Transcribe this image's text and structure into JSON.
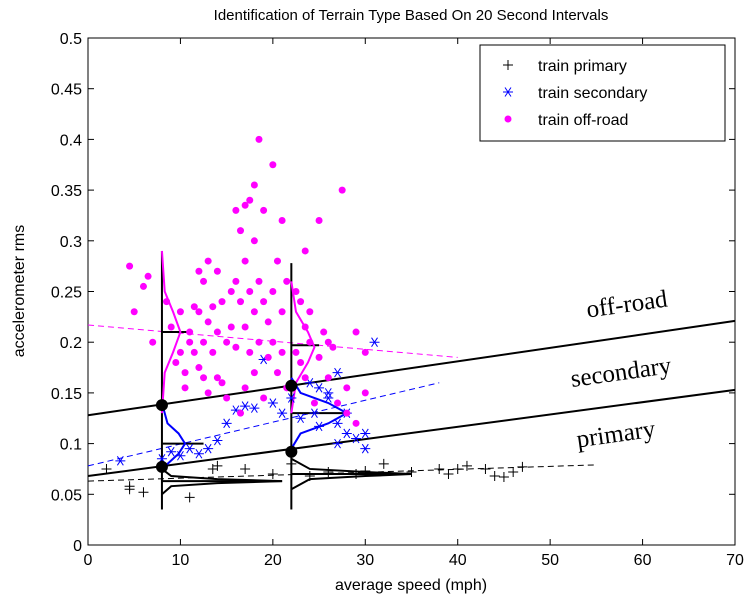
{
  "chart_data": {
    "type": "scatter",
    "title": "Identification of Terrain Type Based On 20 Second Intervals",
    "x_label": "average speed (mph)",
    "y_label": "accelerometer rms",
    "xlim": [
      0,
      70
    ],
    "ylim": [
      0,
      0.5
    ],
    "xticks": [
      0,
      10,
      20,
      30,
      40,
      50,
      60,
      70
    ],
    "yticks": [
      0,
      0.05,
      0.1,
      0.15,
      0.2,
      0.25,
      0.3,
      0.35,
      0.4,
      0.45,
      0.5
    ],
    "legend": "upper right",
    "series": [
      {
        "name": "train primary",
        "color": "#000000",
        "marker": "plus",
        "x": [
          2,
          4.5,
          4.5,
          6,
          8,
          11,
          13.5,
          14,
          17,
          20,
          22,
          24,
          26,
          29,
          30,
          32,
          35,
          38,
          39,
          40,
          41,
          43,
          44,
          45,
          46,
          47
        ],
        "y": [
          0.075,
          0.058,
          0.055,
          0.052,
          0.075,
          0.047,
          0.075,
          0.078,
          0.075,
          0.07,
          0.08,
          0.068,
          0.072,
          0.07,
          0.073,
          0.08,
          0.072,
          0.075,
          0.07,
          0.075,
          0.078,
          0.075,
          0.068,
          0.067,
          0.072,
          0.077
        ]
      },
      {
        "name": "train secondary",
        "color": "#0000ff",
        "marker": "star",
        "x": [
          3.5,
          8,
          9,
          10,
          11,
          12,
          13,
          14,
          15,
          16,
          17,
          18,
          19,
          20,
          21,
          22,
          23,
          24,
          25,
          26,
          27,
          27,
          28,
          28,
          29,
          30,
          30,
          31,
          26,
          24.5,
          25,
          27
        ],
        "y": [
          0.083,
          0.085,
          0.092,
          0.088,
          0.095,
          0.09,
          0.095,
          0.103,
          0.12,
          0.133,
          0.137,
          0.135,
          0.183,
          0.14,
          0.13,
          0.145,
          0.125,
          0.16,
          0.155,
          0.15,
          0.1,
          0.12,
          0.13,
          0.11,
          0.105,
          0.095,
          0.11,
          0.2,
          0.145,
          0.13,
          0.117,
          0.17
        ]
      },
      {
        "name": "train off-road",
        "color": "#ff00ff",
        "marker": "dot",
        "x": [
          4.5,
          5,
          6,
          6.5,
          7,
          8.5,
          9,
          9.5,
          10,
          10,
          10.5,
          10.5,
          11,
          11,
          11.5,
          11.5,
          12,
          12,
          12.5,
          12.5,
          12.5,
          13,
          13,
          13.5,
          13.5,
          14,
          14,
          14,
          14.5,
          14.5,
          15,
          15,
          15.5,
          15.5,
          16,
          16,
          16,
          16.5,
          16.5,
          17,
          17,
          17,
          17,
          17.5,
          17.5,
          17.5,
          18,
          18,
          18,
          18,
          18.5,
          18.5,
          18.5,
          19,
          19,
          19,
          19.5,
          19.5,
          20,
          20,
          20,
          20.5,
          20.5,
          21,
          21,
          21,
          21.5,
          21.5,
          22.5,
          22.5,
          23,
          23,
          23.5,
          23.5,
          24,
          24,
          24.5,
          25,
          25,
          25.5,
          26,
          26,
          26.5,
          27,
          27.5,
          28,
          28,
          29,
          29,
          30,
          30,
          16.5,
          12,
          23.5,
          13
        ],
        "y": [
          0.275,
          0.23,
          0.255,
          0.265,
          0.2,
          0.24,
          0.215,
          0.18,
          0.19,
          0.23,
          0.17,
          0.155,
          0.21,
          0.2,
          0.235,
          0.19,
          0.23,
          0.175,
          0.26,
          0.2,
          0.165,
          0.22,
          0.15,
          0.235,
          0.19,
          0.27,
          0.21,
          0.165,
          0.24,
          0.16,
          0.2,
          0.145,
          0.25,
          0.215,
          0.33,
          0.26,
          0.195,
          0.31,
          0.24,
          0.335,
          0.28,
          0.215,
          0.155,
          0.34,
          0.25,
          0.19,
          0.355,
          0.3,
          0.23,
          0.17,
          0.4,
          0.26,
          0.2,
          0.33,
          0.24,
          0.145,
          0.22,
          0.185,
          0.375,
          0.25,
          0.2,
          0.28,
          0.17,
          0.32,
          0.23,
          0.19,
          0.26,
          0.155,
          0.25,
          0.19,
          0.24,
          0.18,
          0.215,
          0.165,
          0.23,
          0.2,
          0.14,
          0.32,
          0.185,
          0.21,
          0.2,
          0.165,
          0.195,
          0.14,
          0.35,
          0.155,
          0.13,
          0.21,
          0.12,
          0.19,
          0.15,
          0.13,
          0.27,
          0.29,
          0.28
        ]
      }
    ],
    "lines": [
      {
        "color": "#000000",
        "dashed": true,
        "x": [
          0,
          55
        ],
        "y": [
          0.063,
          0.079
        ]
      },
      {
        "color": "#0000ff",
        "dashed": true,
        "x": [
          0,
          38
        ],
        "y": [
          0.078,
          0.16
        ]
      },
      {
        "color": "#ff00ff",
        "dashed": true,
        "x": [
          0,
          40
        ],
        "y": [
          0.217,
          0.185
        ]
      },
      {
        "color": "#000000",
        "dashed": false,
        "x": [
          0,
          70
        ],
        "y": [
          0.128,
          0.221
        ]
      },
      {
        "color": "#000000",
        "dashed": false,
        "x": [
          0,
          70
        ],
        "y": [
          0.068,
          0.153
        ]
      },
      {
        "color": "#000000",
        "dashed": false,
        "x": [
          8,
          8
        ],
        "y": [
          0.035,
          0.29
        ]
      },
      {
        "color": "#000000",
        "dashed": false,
        "x": [
          22,
          22
        ],
        "y": [
          0.035,
          0.278
        ]
      },
      {
        "color": "#000000",
        "dashed": false,
        "x": [
          8,
          11
        ],
        "y": [
          0.21,
          0.21
        ]
      },
      {
        "color": "#000000",
        "dashed": false,
        "x": [
          8,
          12.5
        ],
        "y": [
          0.1,
          0.1
        ]
      },
      {
        "color": "#000000",
        "dashed": false,
        "x": [
          8,
          21
        ],
        "y": [
          0.063,
          0.063
        ]
      },
      {
        "color": "#000000",
        "dashed": false,
        "x": [
          22,
          25
        ],
        "y": [
          0.197,
          0.197
        ]
      },
      {
        "color": "#000000",
        "dashed": false,
        "x": [
          22,
          28
        ],
        "y": [
          0.13,
          0.13
        ]
      },
      {
        "color": "#000000",
        "dashed": false,
        "x": [
          22,
          35
        ],
        "y": [
          0.07,
          0.07
        ]
      },
      {
        "color": "#ff00ff",
        "dashed": false,
        "x": [
          8,
          8.3,
          9.2,
          10,
          9.2,
          8.3,
          8
        ],
        "y": [
          0.29,
          0.25,
          0.23,
          0.21,
          0.19,
          0.17,
          0.13
        ]
      },
      {
        "color": "#0000ff",
        "dashed": false,
        "x": [
          8,
          8.6,
          9.8,
          10.5,
          9.8,
          8.6,
          8
        ],
        "y": [
          0.14,
          0.12,
          0.11,
          0.1,
          0.09,
          0.08,
          0.075
        ]
      },
      {
        "color": "#000000",
        "dashed": false,
        "x": [
          8,
          9,
          14,
          21,
          14,
          9,
          8
        ],
        "y": [
          0.075,
          0.068,
          0.065,
          0.063,
          0.061,
          0.058,
          0.05
        ]
      },
      {
        "color": "#ff00ff",
        "dashed": false,
        "x": [
          22,
          22.5,
          23.8,
          24.5,
          23.8,
          22.5,
          22
        ],
        "y": [
          0.26,
          0.23,
          0.21,
          0.195,
          0.18,
          0.16,
          0.13
        ]
      },
      {
        "color": "#0000ff",
        "dashed": false,
        "x": [
          22,
          23,
          26,
          28,
          26,
          23,
          22
        ],
        "y": [
          0.165,
          0.15,
          0.14,
          0.13,
          0.12,
          0.11,
          0.095
        ]
      },
      {
        "color": "#000000",
        "dashed": false,
        "x": [
          22,
          24,
          30,
          35,
          30,
          24,
          22
        ],
        "y": [
          0.085,
          0.075,
          0.072,
          0.07,
          0.068,
          0.065,
          0.055
        ]
      }
    ],
    "markers": {
      "color": "#000000",
      "x": [
        8,
        8,
        22,
        22
      ],
      "y": [
        0.138,
        0.077,
        0.157,
        0.092
      ]
    },
    "annotations": [
      "off-road",
      "secondary",
      "primary"
    ]
  }
}
